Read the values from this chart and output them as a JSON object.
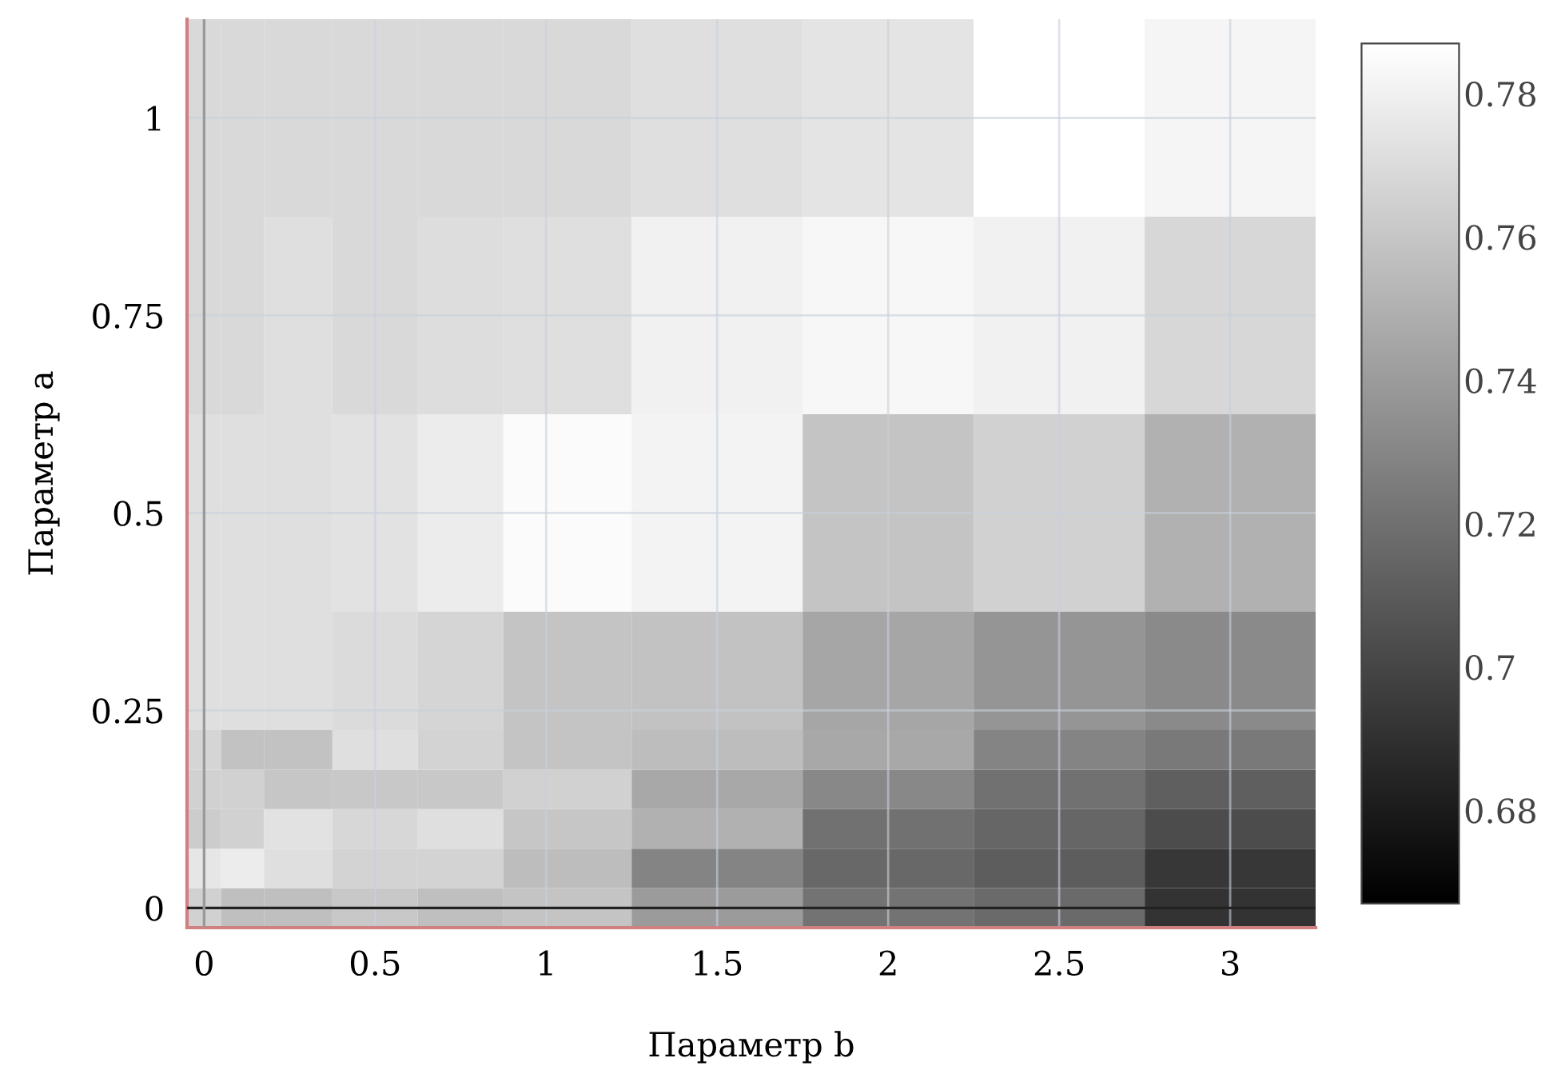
{
  "chart_data": {
    "type": "heatmap",
    "xlabel": "Параметр b",
    "ylabel": "Параметр a",
    "x": [
      0,
      0.1,
      0.25,
      0.5,
      0.75,
      1,
      1.5,
      2,
      2.5,
      3
    ],
    "y": [
      1,
      0.75,
      0.5,
      0.25,
      0.2,
      0.15,
      0.1,
      0.05,
      0
    ],
    "cells": [
      [
        0.769,
        0.769,
        0.769,
        0.769,
        0.769,
        0.769,
        0.772,
        0.774,
        0.787,
        0.782
      ],
      [
        0.769,
        0.769,
        0.772,
        0.769,
        0.771,
        0.772,
        0.78,
        0.783,
        0.78,
        0.768
      ],
      [
        0.772,
        0.772,
        0.772,
        0.773,
        0.778,
        0.785,
        0.781,
        0.759,
        0.765,
        0.75
      ],
      [
        0.772,
        0.772,
        0.772,
        0.77,
        0.767,
        0.759,
        0.758,
        0.745,
        0.737,
        0.732
      ],
      [
        0.767,
        0.758,
        0.758,
        0.772,
        0.766,
        0.759,
        0.756,
        0.746,
        0.729,
        0.724
      ],
      [
        0.765,
        0.765,
        0.76,
        0.761,
        0.761,
        0.765,
        0.746,
        0.731,
        0.72,
        0.712
      ],
      [
        0.763,
        0.765,
        0.773,
        0.768,
        0.772,
        0.76,
        0.75,
        0.72,
        0.715,
        0.703
      ],
      [
        0.775,
        0.778,
        0.772,
        0.766,
        0.766,
        0.756,
        0.729,
        0.716,
        0.711,
        0.693
      ],
      [
        0.765,
        0.757,
        0.757,
        0.761,
        0.757,
        0.759,
        0.74,
        0.721,
        0.717,
        0.691
      ]
    ],
    "xlim": [
      -0.05,
      3.25
    ],
    "ylim": [
      -0.025,
      1.125
    ],
    "xticks": [
      0,
      0.5,
      1,
      1.5,
      2,
      2.5,
      3
    ],
    "yticks": [
      0,
      0.25,
      0.5,
      0.75,
      1
    ],
    "clim": [
      0.667,
      0.787
    ],
    "cticks": [
      0.68,
      0.7,
      0.72,
      0.74,
      0.76,
      0.78
    ],
    "grid": true,
    "ref_lines": [
      {
        "axis": "y",
        "value": 0,
        "color": "#222222"
      },
      {
        "axis": "x",
        "value": 0,
        "color": "#999999"
      }
    ]
  }
}
